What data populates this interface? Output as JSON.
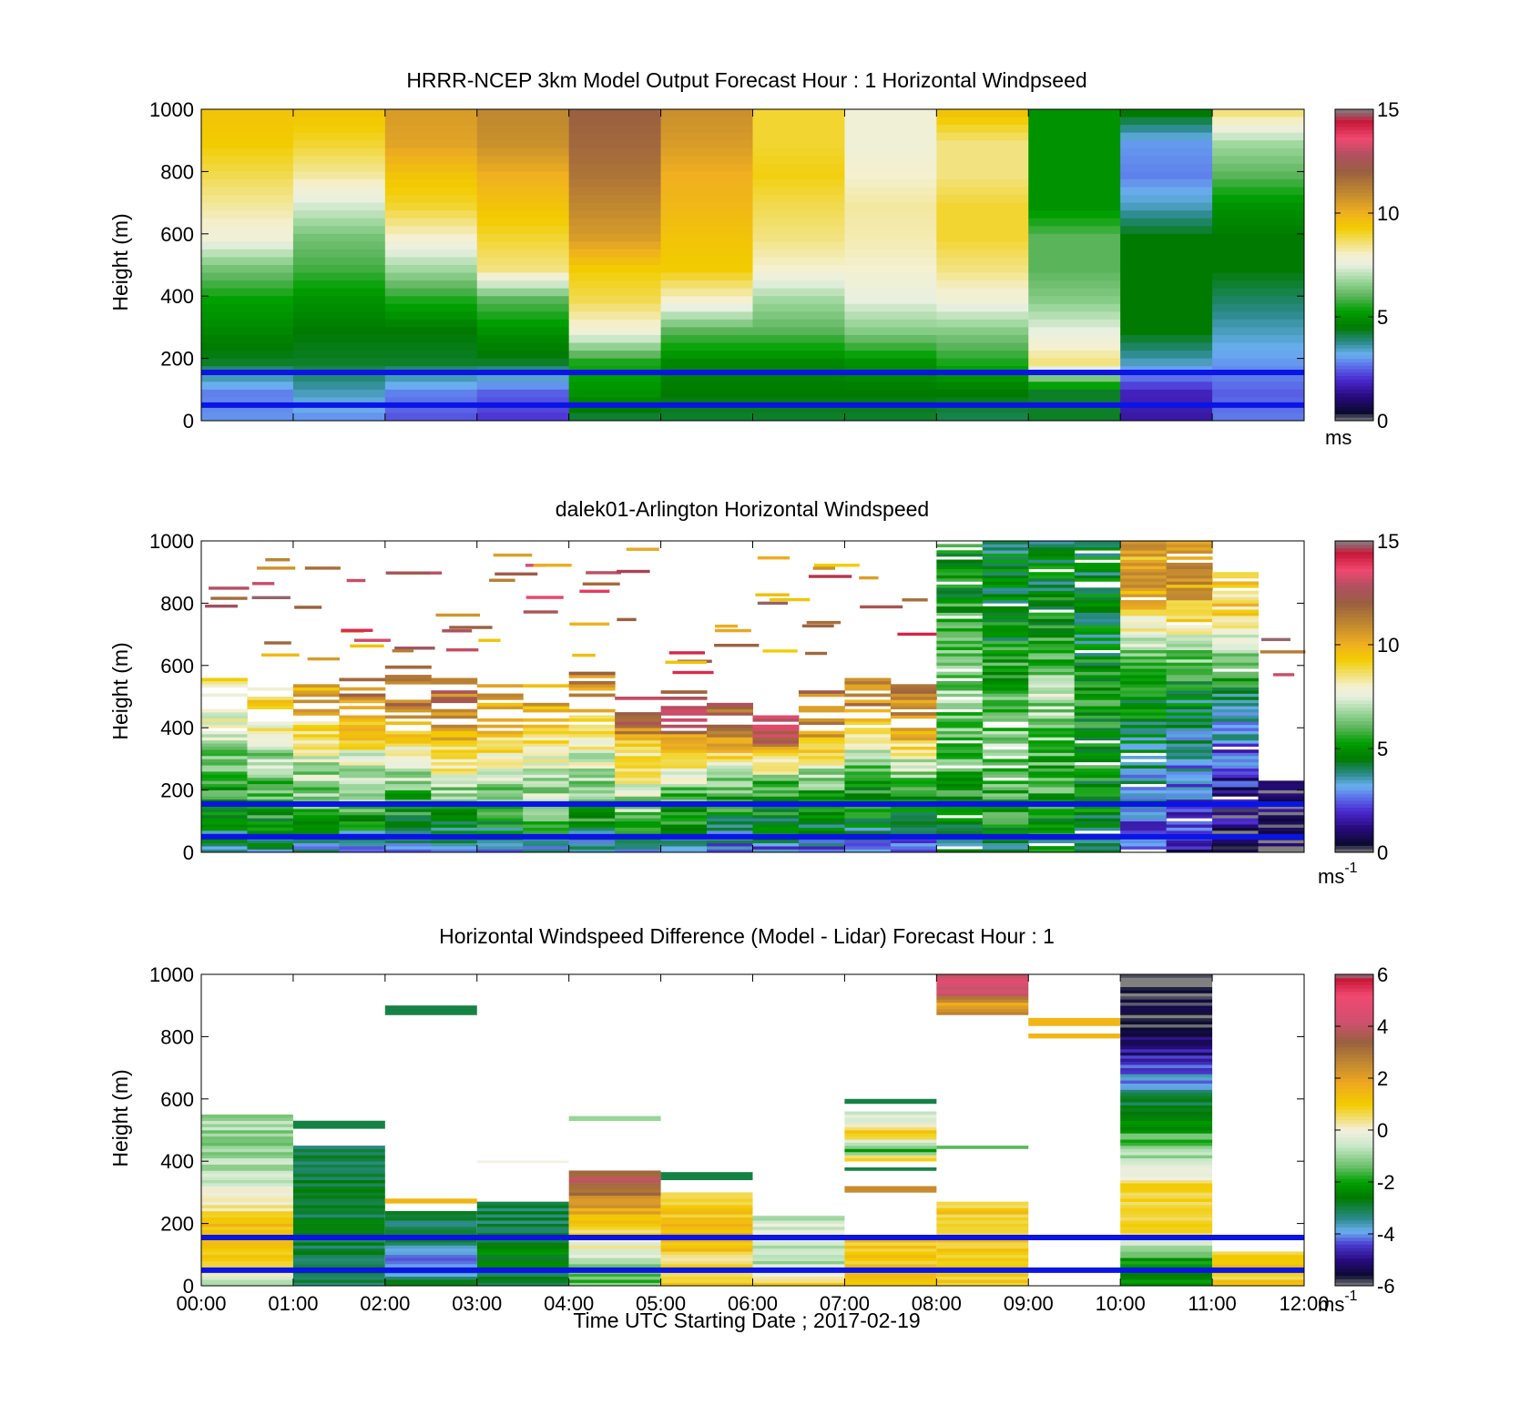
{
  "figure": {
    "xlabel": "Time UTC  Starting Date ; 2017-02-19",
    "x_ticks": [
      "00:00",
      "01:00",
      "02:00",
      "03:00",
      "04:00",
      "05:00",
      "06:00",
      "07:00",
      "08:00",
      "09:00",
      "10:00",
      "11:00",
      "12:00"
    ],
    "y_ticks": [
      "0",
      "200",
      "400",
      "600",
      "800",
      "1000"
    ],
    "ylabel": "Height (m)",
    "reference_line_color": "#0a14e6",
    "reference_lines_m": [
      50,
      155
    ]
  },
  "panels": [
    {
      "title": "HRRR-NCEP 3km Model Output   Forecast Hour : 1 Horizontal Windpseed",
      "colorbar_ticks": [
        "0",
        "5",
        "10",
        "15"
      ],
      "colorbar_unit": "ms",
      "colorbar_unit_sup": ""
    },
    {
      "title": "dalek01-Arlington  Horizontal Windspeed",
      "colorbar_ticks": [
        "0",
        "5",
        "10",
        "15"
      ],
      "colorbar_unit": "ms",
      "colorbar_unit_sup": "-1"
    },
    {
      "title": "Horizontal Windspeed Difference (Model - Lidar) Forecast Hour : 1",
      "colorbar_ticks": [
        "-6",
        "-4",
        "-2",
        "0",
        "2",
        "4",
        "6"
      ],
      "colorbar_unit": "ms",
      "colorbar_unit_sup": "-1"
    }
  ],
  "chart_data": [
    {
      "type": "heatmap",
      "title": "HRRR-NCEP 3km Model Output   Forecast Hour : 1 Horizontal Windpseed",
      "xlabel": "",
      "ylabel": "Height (m)",
      "xlim": [
        0,
        12
      ],
      "ylim": [
        0,
        1000
      ],
      "clim": [
        0,
        15
      ],
      "colorbar_unit": "ms",
      "x_hours": [
        0,
        1,
        2,
        3,
        4,
        5,
        6,
        7,
        8,
        9,
        10,
        11
      ],
      "y_height_m": [
        1000,
        900,
        800,
        700,
        600,
        500,
        400,
        300,
        200,
        100,
        0
      ],
      "grid": false,
      "columns": [
        {
          "hour": 0,
          "values": [
            9.5,
            9.3,
            8.8,
            8.3,
            7.8,
            6.3,
            5.3,
            4.8,
            4.3,
            2.8,
            3.0
          ]
        },
        {
          "hour": 1,
          "values": [
            9.5,
            9.0,
            8.3,
            7.3,
            6.3,
            5.8,
            5.0,
            4.5,
            4.3,
            3.5,
            2.8
          ]
        },
        {
          "hour": 2,
          "values": [
            10.5,
            10.3,
            9.5,
            9.0,
            8.0,
            6.8,
            5.5,
            4.5,
            4.3,
            2.8,
            2.3
          ]
        },
        {
          "hour": 3,
          "values": [
            11.0,
            10.8,
            10.0,
            9.5,
            9.0,
            8.5,
            6.0,
            5.0,
            4.3,
            2.5,
            2.0
          ]
        },
        {
          "hour": 4,
          "values": [
            12.0,
            11.8,
            11.5,
            11.0,
            10.5,
            9.3,
            8.8,
            7.8,
            5.5,
            5.0,
            4.0
          ]
        },
        {
          "hour": 5,
          "values": [
            10.8,
            10.5,
            10.0,
            9.8,
            9.5,
            9.3,
            8.0,
            6.0,
            4.8,
            4.5,
            4.2
          ]
        },
        {
          "hour": 6,
          "values": [
            9.0,
            9.0,
            9.2,
            8.8,
            8.5,
            8.0,
            6.8,
            6.0,
            4.8,
            4.5,
            4.2
          ]
        },
        {
          "hour": 7,
          "values": [
            7.8,
            7.8,
            8.0,
            8.3,
            8.2,
            8.0,
            7.5,
            6.5,
            5.0,
            4.5,
            4.2
          ]
        },
        {
          "hour": 8,
          "values": [
            9.5,
            8.5,
            8.5,
            9.0,
            9.0,
            8.5,
            7.8,
            6.5,
            5.5,
            4.5,
            4.0
          ]
        },
        {
          "hour": 9,
          "values": [
            5.0,
            5.0,
            5.0,
            5.0,
            6.0,
            6.0,
            6.5,
            7.5,
            8.5,
            4.3,
            4.3
          ]
        },
        {
          "hour": 10,
          "values": [
            4.5,
            3.0,
            2.8,
            3.5,
            4.5,
            4.5,
            4.5,
            4.5,
            3.5,
            1.8,
            1.5
          ]
        },
        {
          "hour": 11,
          "values": [
            8.5,
            6.8,
            6.0,
            5.0,
            4.5,
            4.5,
            4.0,
            3.5,
            3.0,
            2.5,
            2.8
          ]
        }
      ]
    },
    {
      "type": "heatmap",
      "title": "dalek01-Arlington  Horizontal Windspeed",
      "xlabel": "",
      "ylabel": "Height (m)",
      "xlim": [
        0,
        12
      ],
      "ylim": [
        0,
        1000
      ],
      "clim": [
        0,
        15
      ],
      "colorbar_unit": "ms-1",
      "note_values": "lidar retrievals, noisy stripes; blank above signal top",
      "grid": false,
      "columns": [
        {
          "hour": 0.0,
          "top_m": 560,
          "values_low_to_high": [
            3.5,
            4.5,
            5.5,
            6.0,
            7.0,
            8.5
          ]
        },
        {
          "hour": 0.5,
          "top_m": 540,
          "values_low_to_high": [
            3.5,
            5.0,
            6.0,
            6.5,
            7.5,
            9.0
          ]
        },
        {
          "hour": 1.0,
          "top_m": 560,
          "values_low_to_high": [
            3.5,
            5.0,
            6.5,
            7.0,
            8.5,
            10.0
          ]
        },
        {
          "hour": 1.5,
          "top_m": 560,
          "values_low_to_high": [
            3.0,
            5.0,
            6.5,
            7.5,
            9.0,
            11.0
          ]
        },
        {
          "hour": 2.0,
          "top_m": 600,
          "values_low_to_high": [
            3.0,
            5.0,
            6.0,
            8.0,
            9.5,
            12.0
          ]
        },
        {
          "hour": 2.5,
          "top_m": 560,
          "values_low_to_high": [
            3.0,
            5.0,
            6.5,
            8.5,
            10.0,
            11.5
          ]
        },
        {
          "hour": 3.0,
          "top_m": 540,
          "values_low_to_high": [
            3.0,
            5.0,
            6.0,
            7.5,
            9.0,
            10.5
          ]
        },
        {
          "hour": 3.5,
          "top_m": 540,
          "values_low_to_high": [
            3.0,
            5.5,
            7.0,
            7.5,
            9.0,
            10.0
          ]
        },
        {
          "hour": 4.0,
          "top_m": 580,
          "values_low_to_high": [
            3.0,
            5.5,
            6.5,
            7.5,
            8.5,
            11.0
          ]
        },
        {
          "hour": 4.5,
          "top_m": 500,
          "values_low_to_high": [
            3.5,
            6.0,
            7.0,
            8.0,
            9.0,
            12.0
          ]
        },
        {
          "hour": 5.0,
          "top_m": 520,
          "values_low_to_high": [
            3.0,
            5.0,
            6.0,
            8.0,
            10.0,
            13.0
          ]
        },
        {
          "hour": 5.5,
          "top_m": 480,
          "values_low_to_high": [
            2.5,
            4.5,
            5.5,
            7.0,
            9.0,
            12.0
          ]
        },
        {
          "hour": 6.0,
          "top_m": 440,
          "values_low_to_high": [
            2.5,
            4.5,
            5.0,
            6.0,
            9.0,
            13.0
          ]
        },
        {
          "hour": 6.5,
          "top_m": 520,
          "values_low_to_high": [
            2.5,
            4.5,
            5.5,
            7.0,
            10.0,
            11.5
          ]
        },
        {
          "hour": 7.0,
          "top_m": 560,
          "values_low_to_high": [
            2.5,
            4.5,
            5.0,
            6.5,
            9.0,
            11.0
          ]
        },
        {
          "hour": 7.5,
          "top_m": 540,
          "values_low_to_high": [
            2.5,
            4.0,
            5.0,
            7.0,
            9.5,
            11.0
          ]
        },
        {
          "hour": 8.0,
          "top_m": 1000,
          "values_low_to_high": [
            4.0,
            5.0,
            6.0,
            6.5,
            6.0,
            5.0
          ]
        },
        {
          "hour": 8.5,
          "top_m": 1000,
          "values_low_to_high": [
            4.5,
            5.5,
            6.5,
            6.0,
            5.0,
            4.5
          ]
        },
        {
          "hour": 9.0,
          "top_m": 1000,
          "values_low_to_high": [
            4.5,
            5.5,
            6.0,
            7.0,
            5.5,
            4.5
          ]
        },
        {
          "hour": 9.5,
          "top_m": 1000,
          "values_low_to_high": [
            4.5,
            5.0,
            5.0,
            5.5,
            4.5,
            4.5
          ]
        },
        {
          "hour": 10.0,
          "top_m": 1000,
          "values_low_to_high": [
            2.0,
            3.0,
            4.0,
            5.0,
            7.0,
            10.0
          ]
        },
        {
          "hour": 10.5,
          "top_m": 1000,
          "values_low_to_high": [
            1.5,
            2.5,
            3.5,
            4.5,
            7.0,
            10.5
          ]
        },
        {
          "hour": 11.0,
          "top_m": 900,
          "values_low_to_high": [
            1.0,
            1.0,
            2.5,
            3.5,
            6.0,
            9.0
          ]
        },
        {
          "hour": 11.5,
          "top_m": 230,
          "values_low_to_high": [
            0.5,
            0.8,
            1.0
          ]
        }
      ]
    },
    {
      "type": "heatmap",
      "title": "Horizontal Windspeed Difference (Model - Lidar) Forecast Hour : 1",
      "xlabel": "Time UTC  Starting Date ; 2017-02-19",
      "ylabel": "Height (m)",
      "xlim": [
        0,
        12
      ],
      "ylim": [
        0,
        1000
      ],
      "clim": [
        -6,
        6
      ],
      "colorbar_unit": "ms-1",
      "grid": false,
      "blocks": [
        {
          "hour_start": 0,
          "hour_end": 1,
          "bottom_m": 0,
          "top_m": 550,
          "values_low_to_high": [
            -1.0,
            0.5,
            1.5,
            1.0,
            0.0,
            -0.5,
            -1.0,
            -1.0
          ]
        },
        {
          "hour_start": 1,
          "hour_end": 2,
          "bottom_m": 0,
          "top_m": 450,
          "values_low_to_high": [
            -3.0,
            -3.0,
            -2.8,
            -2.8,
            -3.0,
            -3.2
          ]
        },
        {
          "hour_start": 1,
          "hour_end": 2,
          "bottom_m": 505,
          "top_m": 530,
          "values_low_to_high": [
            -3.0
          ]
        },
        {
          "hour_start": 2,
          "hour_end": 3,
          "bottom_m": 0,
          "top_m": 240,
          "values_low_to_high": [
            -3.0,
            -4.0,
            -3.0
          ]
        },
        {
          "hour_start": 2,
          "hour_end": 3,
          "bottom_m": 265,
          "top_m": 280,
          "values_low_to_high": [
            1.5
          ]
        },
        {
          "hour_start": 2,
          "hour_end": 3,
          "bottom_m": 870,
          "top_m": 900,
          "values_low_to_high": [
            -3.0
          ]
        },
        {
          "hour_start": 3,
          "hour_end": 4,
          "bottom_m": 0,
          "top_m": 270,
          "values_low_to_high": [
            -3.0,
            -2.5,
            -3.0
          ]
        },
        {
          "hour_start": 3,
          "hour_end": 4,
          "bottom_m": 395,
          "top_m": 402,
          "values_low_to_high": [
            0.0
          ]
        },
        {
          "hour_start": 4,
          "hour_end": 5,
          "bottom_m": 0,
          "top_m": 370,
          "values_low_to_high": [
            -1.5,
            -1.0,
            0.0,
            1.0,
            2.0,
            3.5
          ]
        },
        {
          "hour_start": 4,
          "hour_end": 5,
          "bottom_m": 530,
          "top_m": 545,
          "values_low_to_high": [
            -1.0
          ]
        },
        {
          "hour_start": 5,
          "hour_end": 6,
          "bottom_m": 0,
          "top_m": 300,
          "values_low_to_high": [
            1.0,
            0.5,
            1.5,
            1.0
          ]
        },
        {
          "hour_start": 5,
          "hour_end": 6,
          "bottom_m": 340,
          "top_m": 365,
          "values_low_to_high": [
            -3.0
          ]
        },
        {
          "hour_start": 6,
          "hour_end": 7,
          "bottom_m": 0,
          "top_m": 225,
          "values_low_to_high": [
            1.0,
            -1.0,
            -0.5
          ]
        },
        {
          "hour_start": 7,
          "hour_end": 8,
          "bottom_m": 0,
          "top_m": 150,
          "values_low_to_high": [
            1.0
          ]
        },
        {
          "hour_start": 7,
          "hour_end": 8,
          "bottom_m": 300,
          "top_m": 320,
          "values_low_to_high": [
            2.5
          ]
        },
        {
          "hour_start": 7,
          "hour_end": 8,
          "bottom_m": 370,
          "top_m": 380,
          "values_low_to_high": [
            -3.0
          ]
        },
        {
          "hour_start": 7,
          "hour_end": 8,
          "bottom_m": 400,
          "top_m": 560,
          "values_low_to_high": [
            1.0,
            -2.0,
            0.5,
            1.0,
            -0.5
          ]
        },
        {
          "hour_start": 7,
          "hour_end": 8,
          "bottom_m": 585,
          "top_m": 600,
          "values_low_to_high": [
            -3.0
          ]
        },
        {
          "hour_start": 8,
          "hour_end": 9,
          "bottom_m": 0,
          "top_m": 270,
          "values_low_to_high": [
            1.0
          ]
        },
        {
          "hour_start": 8,
          "hour_end": 9,
          "bottom_m": 440,
          "top_m": 450,
          "values_low_to_high": [
            -1.5
          ]
        },
        {
          "hour_start": 8,
          "hour_end": 9,
          "bottom_m": 870,
          "top_m": 1000,
          "values_low_to_high": [
            3.0,
            1.5,
            4.5,
            4.5
          ]
        },
        {
          "hour_start": 9,
          "hour_end": 10,
          "bottom_m": 795,
          "top_m": 810,
          "values_low_to_high": [
            1.5
          ]
        },
        {
          "hour_start": 9,
          "hour_end": 10,
          "bottom_m": 835,
          "top_m": 860,
          "values_low_to_high": [
            1.5
          ]
        },
        {
          "hour_start": 10,
          "hour_end": 11,
          "bottom_m": 0,
          "top_m": 1000,
          "values_low_to_high": [
            -2.5,
            -2.0,
            0.5,
            1.0,
            0.5,
            -1.0,
            -2.0,
            -3.0,
            -4.0,
            -5.0,
            -5.5,
            -6.0
          ]
        },
        {
          "hour_start": 11,
          "hour_end": 12,
          "bottom_m": 0,
          "top_m": 110,
          "values_low_to_high": [
            1.0
          ]
        }
      ]
    }
  ]
}
